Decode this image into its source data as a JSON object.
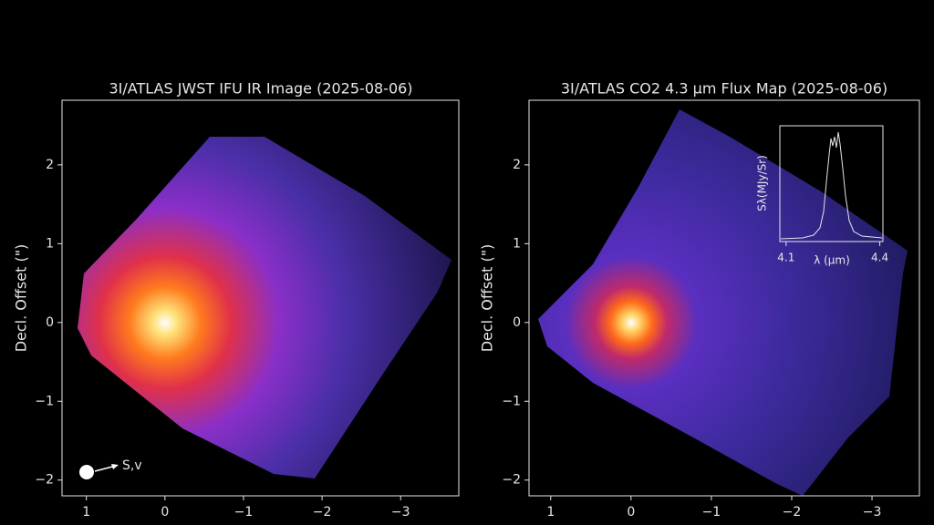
{
  "chart_data": [
    {
      "type": "image",
      "title": "3I/ATLAS JWST IFU IR Image (2025-08-06)",
      "ylabel": "Decl. Offset (\")",
      "annotation": "S,v",
      "xlim": [
        1.31,
        -3.74
      ],
      "ylim": [
        -2.2,
        2.82
      ],
      "xticks": [
        1,
        0,
        {
          "value": -1,
          "label": "−1"
        },
        {
          "value": -2,
          "label": "−2"
        },
        {
          "value": -3,
          "label": "−3"
        }
      ],
      "yticks": [
        {
          "value": -2,
          "label": "−2"
        },
        {
          "value": -1,
          "label": "−1"
        },
        0,
        1,
        2
      ]
    },
    {
      "type": "image",
      "title": "3I/ATLAS CO2 4.3 µm Flux Map (2025-08-06)",
      "ylabel": "Decl. Offset (\")",
      "xlim": [
        1.27,
        -3.59
      ],
      "ylim": [
        -2.2,
        2.82
      ],
      "xticks": [
        1,
        0,
        {
          "value": -1,
          "label": "−1"
        },
        {
          "value": -2,
          "label": "−2"
        },
        {
          "value": -3,
          "label": "−3"
        }
      ],
      "yticks": [
        {
          "value": -2,
          "label": "−2"
        },
        {
          "value": -1,
          "label": "−1"
        },
        0,
        1,
        2
      ],
      "inset": {
        "xlabel": "λ (µm)",
        "ylabel": "Sλ(MJy/Sr)",
        "xlim": [
          4.08,
          4.41
        ],
        "xticks": [
          4.1,
          4.4
        ]
      }
    }
  ]
}
